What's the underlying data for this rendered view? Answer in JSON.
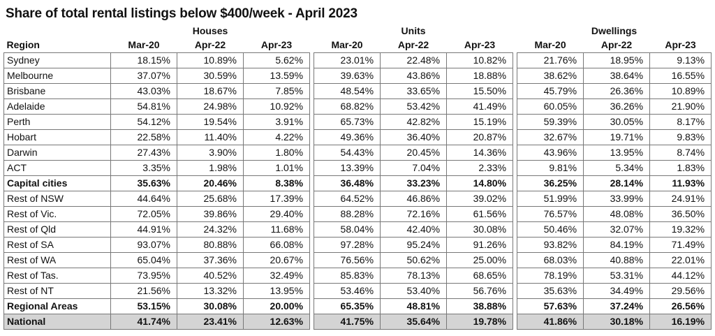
{
  "chart_data": {
    "type": "table",
    "title": "Share of total rental listings below $400/week - April 2023",
    "region_header": "Region",
    "groups": [
      "Houses",
      "Units",
      "Dwellings"
    ],
    "periods": [
      "Mar-20",
      "Apr-22",
      "Apr-23"
    ],
    "rows": [
      {
        "region": "Sydney",
        "values": [
          "18.15%",
          "10.89%",
          "5.62%",
          "23.01%",
          "22.48%",
          "10.82%",
          "21.76%",
          "18.95%",
          "9.13%"
        ]
      },
      {
        "region": "Melbourne",
        "values": [
          "37.07%",
          "30.59%",
          "13.59%",
          "39.63%",
          "43.86%",
          "18.88%",
          "38.62%",
          "38.64%",
          "16.55%"
        ]
      },
      {
        "region": "Brisbane",
        "values": [
          "43.03%",
          "18.67%",
          "7.85%",
          "48.54%",
          "33.65%",
          "15.50%",
          "45.79%",
          "26.36%",
          "10.89%"
        ]
      },
      {
        "region": "Adelaide",
        "values": [
          "54.81%",
          "24.98%",
          "10.92%",
          "68.82%",
          "53.42%",
          "41.49%",
          "60.05%",
          "36.26%",
          "21.90%"
        ]
      },
      {
        "region": "Perth",
        "values": [
          "54.12%",
          "19.54%",
          "3.91%",
          "65.73%",
          "42.82%",
          "15.19%",
          "59.39%",
          "30.05%",
          "8.17%"
        ]
      },
      {
        "region": "Hobart",
        "values": [
          "22.58%",
          "11.40%",
          "4.22%",
          "49.36%",
          "36.40%",
          "20.87%",
          "32.67%",
          "19.71%",
          "9.83%"
        ]
      },
      {
        "region": "Darwin",
        "values": [
          "27.43%",
          "3.90%",
          "1.80%",
          "54.43%",
          "20.45%",
          "14.36%",
          "43.96%",
          "13.95%",
          "8.74%"
        ]
      },
      {
        "region": "ACT",
        "values": [
          "3.35%",
          "1.98%",
          "1.01%",
          "13.39%",
          "7.04%",
          "2.33%",
          "9.81%",
          "5.34%",
          "1.83%"
        ]
      },
      {
        "region": "Capital cities",
        "bold": true,
        "values": [
          "35.63%",
          "20.46%",
          "8.38%",
          "36.48%",
          "33.23%",
          "14.80%",
          "36.25%",
          "28.14%",
          "11.93%"
        ]
      },
      {
        "region": "Rest of NSW",
        "values": [
          "44.64%",
          "25.68%",
          "17.39%",
          "64.52%",
          "46.86%",
          "39.02%",
          "51.99%",
          "33.99%",
          "24.91%"
        ]
      },
      {
        "region": "Rest of Vic.",
        "values": [
          "72.05%",
          "39.86%",
          "29.40%",
          "88.28%",
          "72.16%",
          "61.56%",
          "76.57%",
          "48.08%",
          "36.50%"
        ]
      },
      {
        "region": "Rest of Qld",
        "values": [
          "44.91%",
          "24.32%",
          "11.68%",
          "58.04%",
          "42.40%",
          "30.08%",
          "50.46%",
          "32.07%",
          "19.32%"
        ]
      },
      {
        "region": "Rest of SA",
        "values": [
          "93.07%",
          "80.88%",
          "66.08%",
          "97.28%",
          "95.24%",
          "91.26%",
          "93.82%",
          "84.19%",
          "71.49%"
        ]
      },
      {
        "region": "Rest of WA",
        "values": [
          "65.04%",
          "37.36%",
          "20.67%",
          "76.56%",
          "50.62%",
          "25.00%",
          "68.03%",
          "40.88%",
          "22.01%"
        ]
      },
      {
        "region": "Rest of Tas.",
        "values": [
          "73.95%",
          "40.52%",
          "32.49%",
          "85.83%",
          "78.13%",
          "68.65%",
          "78.19%",
          "53.31%",
          "44.12%"
        ]
      },
      {
        "region": "Rest of NT",
        "values": [
          "21.56%",
          "13.32%",
          "13.95%",
          "53.46%",
          "53.40%",
          "56.76%",
          "35.63%",
          "34.49%",
          "29.56%"
        ]
      },
      {
        "region": "Regional Areas",
        "bold": true,
        "values": [
          "53.15%",
          "30.08%",
          "20.00%",
          "65.35%",
          "48.81%",
          "38.88%",
          "57.63%",
          "37.24%",
          "26.56%"
        ]
      },
      {
        "region": "National",
        "bold": true,
        "shaded": true,
        "values": [
          "41.74%",
          "23.41%",
          "12.63%",
          "41.75%",
          "35.64%",
          "19.78%",
          "41.86%",
          "30.18%",
          "16.19%"
        ]
      }
    ]
  }
}
